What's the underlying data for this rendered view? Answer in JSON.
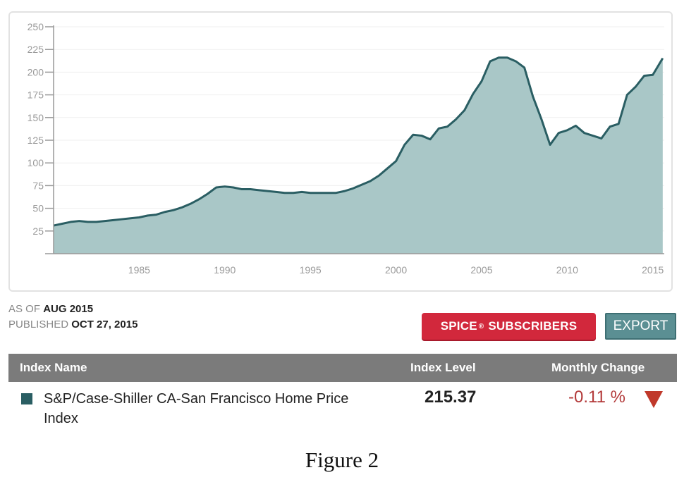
{
  "chart_data": {
    "type": "area",
    "title": "",
    "xlabel": "",
    "ylabel": "",
    "ylim": [
      0,
      250
    ],
    "xlim": [
      1980.0,
      2015.67
    ],
    "y_ticks": [
      25,
      50,
      75,
      100,
      125,
      150,
      175,
      200,
      225,
      250
    ],
    "x_ticks": [
      1985,
      1990,
      1995,
      2000,
      2005,
      2010,
      2015
    ],
    "grid": true,
    "fill_color": "#a9c7c7",
    "line_color": "#2a5e63",
    "series": [
      {
        "name": "S&P/Case-Shiller CA-San Francisco Home Price Index",
        "x": [
          1980.0,
          1980.5,
          1981.0,
          1981.5,
          1982.0,
          1982.5,
          1983.0,
          1983.5,
          1984.0,
          1984.5,
          1985.0,
          1985.5,
          1986.0,
          1986.5,
          1987.0,
          1987.5,
          1988.0,
          1988.5,
          1989.0,
          1989.5,
          1990.0,
          1990.5,
          1991.0,
          1991.5,
          1992.0,
          1992.5,
          1993.0,
          1993.5,
          1994.0,
          1994.5,
          1995.0,
          1995.5,
          1996.0,
          1996.5,
          1997.0,
          1997.5,
          1998.0,
          1998.5,
          1999.0,
          1999.5,
          2000.0,
          2000.5,
          2001.0,
          2001.5,
          2002.0,
          2002.5,
          2003.0,
          2003.5,
          2004.0,
          2004.5,
          2005.0,
          2005.5,
          2006.0,
          2006.5,
          2007.0,
          2007.5,
          2008.0,
          2008.5,
          2009.0,
          2009.5,
          2010.0,
          2010.5,
          2011.0,
          2011.5,
          2012.0,
          2012.5,
          2013.0,
          2013.5,
          2014.0,
          2014.5,
          2015.0,
          2015.58
        ],
        "values": [
          31,
          33,
          35,
          36,
          35,
          35,
          36,
          37,
          38,
          39,
          40,
          42,
          43,
          46,
          48,
          51,
          55,
          60,
          66,
          73,
          74,
          73,
          71,
          71,
          70,
          69,
          68,
          67,
          67,
          68,
          67,
          67,
          67,
          67,
          69,
          72,
          76,
          80,
          86,
          94,
          102,
          120,
          131,
          130,
          126,
          138,
          140,
          148,
          158,
          176,
          190,
          212,
          216,
          216,
          212,
          205,
          173,
          148,
          120,
          133,
          136,
          141,
          133,
          130,
          127,
          140,
          143,
          175,
          184,
          196,
          197,
          215.37
        ]
      }
    ]
  },
  "as_of": {
    "label": "AS OF",
    "value": "AUG 2015",
    "published_label": "PUBLISHED",
    "published_value": "OCT 27, 2015"
  },
  "buttons": {
    "spice_prefix": "SPICE",
    "spice_mark": "®",
    "spice_suffix": "SUBSCRIBERS",
    "export": "EXPORT"
  },
  "table": {
    "headers": [
      "Index Name",
      "Index Level",
      "Monthly Change"
    ],
    "row": {
      "name": "S&P/Case-Shiller CA-San Francisco Home Price Index",
      "level": "215.37",
      "change": "-0.11 %"
    }
  },
  "caption": "Figure 2",
  "colors": {
    "spice_button": "#d2283c",
    "export_button": "#5b8f93",
    "header_bar": "#7b7b7b",
    "negative": "#b33a3a"
  }
}
